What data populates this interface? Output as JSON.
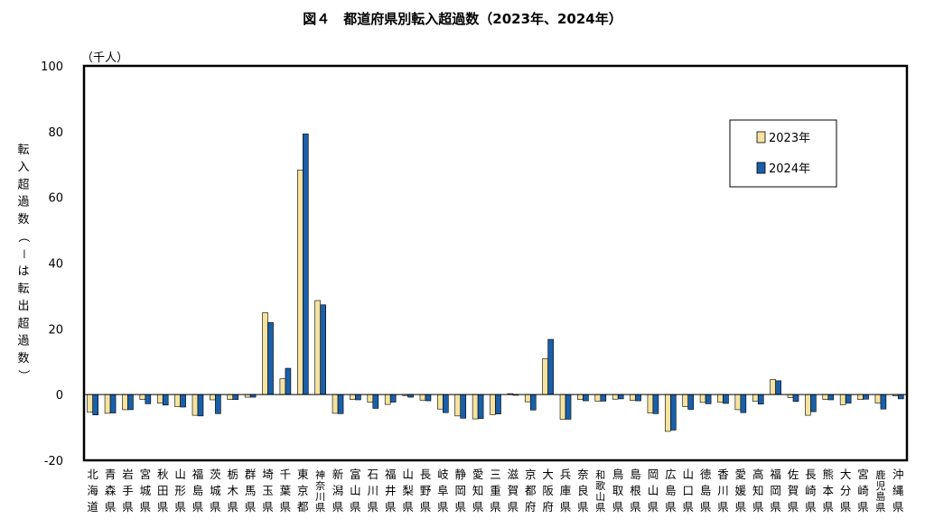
{
  "chart_data": {
    "type": "bar",
    "title": "図４　都道府県別転入超過数（2023年、2024年）",
    "unit_label": "（千人）",
    "ylabel": "転入超過数（－は転出超過数）",
    "ylim": [
      -20,
      100
    ],
    "yticks": [
      -20,
      0,
      20,
      40,
      60,
      80,
      100
    ],
    "grid": false,
    "legend_position": "top-right",
    "categories": [
      "北海道",
      "青森県",
      "岩手県",
      "宮城県",
      "秋田県",
      "山形県",
      "福島県",
      "茨城県",
      "栃木県",
      "群馬県",
      "埼玉県",
      "千葉県",
      "東京都",
      "神奈川県",
      "新潟県",
      "富山県",
      "石川県",
      "福井県",
      "山梨県",
      "長野県",
      "岐阜県",
      "静岡県",
      "愛知県",
      "三重県",
      "滋賀県",
      "京都府",
      "大阪府",
      "兵庫県",
      "奈良県",
      "和歌山県",
      "鳥取県",
      "島根県",
      "岡山県",
      "広島県",
      "山口県",
      "徳島県",
      "香川県",
      "愛媛県",
      "高知県",
      "福岡県",
      "佐賀県",
      "長崎県",
      "熊本県",
      "大分県",
      "宮崎県",
      "鹿児島県",
      "沖縄県"
    ],
    "series": [
      {
        "name": "2023年",
        "color": "#f5e3a0",
        "values": [
          -5.4,
          -5.7,
          -4.6,
          -1.5,
          -2.6,
          -3.7,
          -6.3,
          -1.6,
          -1.5,
          -0.8,
          24.9,
          4.8,
          68.3,
          28.6,
          -5.7,
          -1.5,
          -2.3,
          -3.0,
          -0.3,
          -1.7,
          -4.4,
          -6.5,
          -7.4,
          -6.1,
          0.3,
          -2.2,
          10.9,
          -7.5,
          -1.5,
          -2.0,
          -1.4,
          -1.8,
          -5.6,
          -11.2,
          -3.7,
          -2.4,
          -2.3,
          -4.6,
          -2.0,
          4.6,
          -0.9,
          -6.3,
          -1.5,
          -3.1,
          -1.5,
          -2.6,
          -0.4
        ]
      },
      {
        "name": "2024年",
        "color": "#1a5fa8",
        "values": [
          -6.2,
          -5.6,
          -4.6,
          -2.8,
          -3.2,
          -3.8,
          -6.5,
          -5.8,
          -1.5,
          -0.8,
          21.9,
          8.0,
          79.3,
          27.3,
          -5.8,
          -1.6,
          -4.2,
          -2.3,
          -0.8,
          -1.9,
          -5.5,
          -7.2,
          -7.3,
          -5.9,
          -0.1,
          -4.7,
          16.8,
          -7.5,
          -1.9,
          -2.0,
          -1.3,
          -1.9,
          -5.8,
          -10.8,
          -4.5,
          -2.8,
          -2.7,
          -5.5,
          -2.9,
          4.2,
          -2.1,
          -5.2,
          -1.6,
          -2.6,
          -1.4,
          -4.4,
          -1.3
        ]
      }
    ]
  }
}
